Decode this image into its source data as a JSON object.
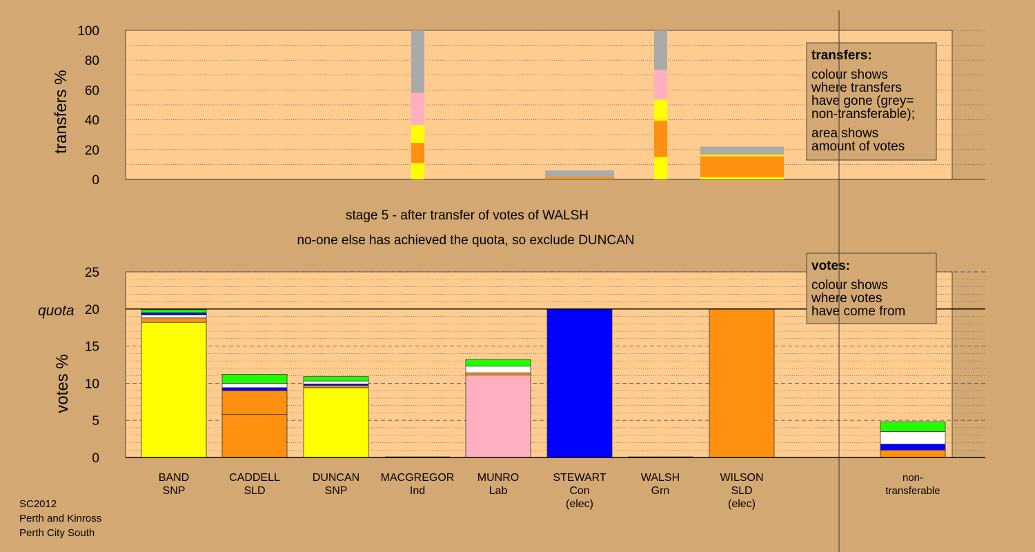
{
  "top": {
    "ylabel": "transfers %",
    "yticks": [
      "0",
      "20",
      "40",
      "60",
      "80",
      "100"
    ],
    "legend": {
      "title": "transfers:",
      "lines1": [
        "colour shows",
        "where transfers",
        "have gone (grey=",
        "non-transferable);"
      ],
      "lines2": [
        "area shows",
        "amount of votes"
      ]
    }
  },
  "stage_line": "stage 5 - after transfer of votes of WALSH",
  "decision_line": "no-one else has achieved the quota, so exclude DUNCAN",
  "bottom": {
    "ylabel": "votes %",
    "yticks": [
      "0",
      "5",
      "10",
      "15",
      "20",
      "25"
    ],
    "quota_label": "quota",
    "legend": {
      "title": "votes:",
      "lines": [
        "colour shows",
        "where votes",
        "have come from"
      ]
    }
  },
  "candidates": [
    {
      "name": "BAND",
      "party": "SNP",
      "note": ""
    },
    {
      "name": "CADDELL",
      "party": "SLD",
      "note": ""
    },
    {
      "name": "DUNCAN",
      "party": "SNP",
      "note": ""
    },
    {
      "name": "MACGREGOR",
      "party": "Ind",
      "note": ""
    },
    {
      "name": "MUNRO",
      "party": "Lab",
      "note": ""
    },
    {
      "name": "STEWART",
      "party": "Con",
      "note": "(elec)"
    },
    {
      "name": "WALSH",
      "party": "Grn",
      "note": ""
    },
    {
      "name": "WILSON",
      "party": "SLD",
      "note": "(elec)"
    },
    {
      "name": "non-",
      "party": "transferable",
      "note": ""
    }
  ],
  "footer": [
    "SC2012",
    "Perth and Kinross",
    "Perth City South"
  ],
  "colors": {
    "background": "#d4a872",
    "plot": "#ffcc90",
    "SNP": "#ffff00",
    "SLD": "#ff9010",
    "Con": "#0000ff",
    "Lab": "#ffb0c0",
    "Grn": "#22ff00",
    "Ind": "#ffffff",
    "nontransferable": "#aaaaaa"
  },
  "chart_data": [
    {
      "type": "bar",
      "title": "",
      "ylabel": "transfers %",
      "ylim": [
        0,
        100
      ],
      "stacked": true,
      "bars": [
        {
          "segments": [
            [
              "SNP",
              11
            ],
            [
              "SLD",
              13.5
            ],
            [
              "SNP",
              12
            ],
            [
              "Lab",
              21.5
            ],
            [
              "nontransferable",
              42
            ]
          ]
        },
        {
          "segments": [
            [
              "SLD",
              1.5
            ],
            [
              "nontransferable",
              4.5
            ]
          ]
        },
        {
          "segments": [
            [
              "SNP",
              15
            ],
            [
              "SLD",
              24.5
            ],
            [
              "SNP",
              14
            ],
            [
              "Lab",
              20
            ],
            [
              "nontransferable",
              26.5
            ]
          ]
        },
        {
          "segments": [
            [
              "SNP",
              1.5
            ],
            [
              "SLD",
              14
            ],
            [
              "SNP",
              1
            ],
            [
              "nontransferable",
              5.5
            ]
          ]
        }
      ]
    },
    {
      "type": "bar",
      "title": "",
      "ylabel": "votes %",
      "ylim": [
        0,
        25
      ],
      "quota": 20,
      "stacked": true,
      "categories": [
        "BAND SNP",
        "CADDELL SLD",
        "DUNCAN SNP",
        "MACGREGOR Ind",
        "MUNRO Lab",
        "STEWART Con (elec)",
        "WALSH Grn",
        "WILSON SLD (elec)",
        "non-transferable"
      ],
      "stacks": [
        [
          [
            "SNP",
            18.2
          ],
          [
            "SLD",
            0.6
          ],
          [
            "Ind",
            0.4
          ],
          [
            "Con",
            0.3
          ],
          [
            "Grn",
            0.4
          ]
        ],
        [
          [
            "SLD",
            5.8
          ],
          [
            "SLD",
            3.2
          ],
          [
            "Con",
            0.4
          ],
          [
            "Ind",
            0.6
          ],
          [
            "Grn",
            1.2
          ]
        ],
        [
          [
            "SNP",
            9.4
          ],
          [
            "SLD",
            0.3
          ],
          [
            "Con",
            0.2
          ],
          [
            "Ind",
            0.4
          ],
          [
            "Grn",
            0.6
          ]
        ],
        [],
        [
          [
            "Lab",
            11.1
          ],
          [
            "SLD",
            0.3
          ],
          [
            "Ind",
            0.9
          ],
          [
            "Grn",
            0.9
          ]
        ],
        [
          [
            "Con",
            20.0
          ]
        ],
        [],
        [
          [
            "SLD",
            20.0
          ]
        ],
        [
          [
            "SLD",
            1.0
          ],
          [
            "Con",
            0.8
          ],
          [
            "Ind",
            1.7
          ],
          [
            "Grn",
            1.3
          ]
        ]
      ]
    }
  ]
}
